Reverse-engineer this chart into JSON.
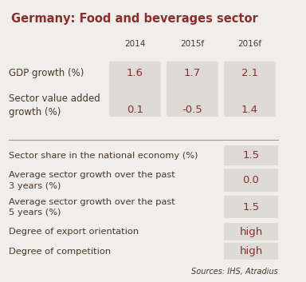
{
  "title": "Germany: Food and beverages sector",
  "background_color": "#f0eeeb",
  "cell_bg_color": "#dedad5",
  "title_color": "#8b2e2e",
  "text_color": "#4a3728",
  "value_color": "#8b2e2e",
  "source_text": "Sources: IHS, Atradius",
  "col_headers": [
    "2014",
    "2015f",
    "2016f"
  ],
  "top_rows": [
    {
      "label": "GDP growth (%)",
      "values": [
        "1.6",
        "1.7",
        "2.1"
      ]
    },
    {
      "label": "Sector value added\ngrowth (%)",
      "values": [
        "0.1",
        "-0.5",
        "1.4"
      ]
    }
  ],
  "bottom_rows": [
    {
      "label": "Sector share in the national economy (%)",
      "value": "1.5"
    },
    {
      "label": "Average sector growth over the past\n3 years (%)",
      "value": "0.0"
    },
    {
      "label": "Average sector growth over the past\n5 years (%)",
      "value": "1.5"
    },
    {
      "label": "Degree of export orientation",
      "value": "high"
    },
    {
      "label": "Degree of competition",
      "value": "high"
    }
  ]
}
